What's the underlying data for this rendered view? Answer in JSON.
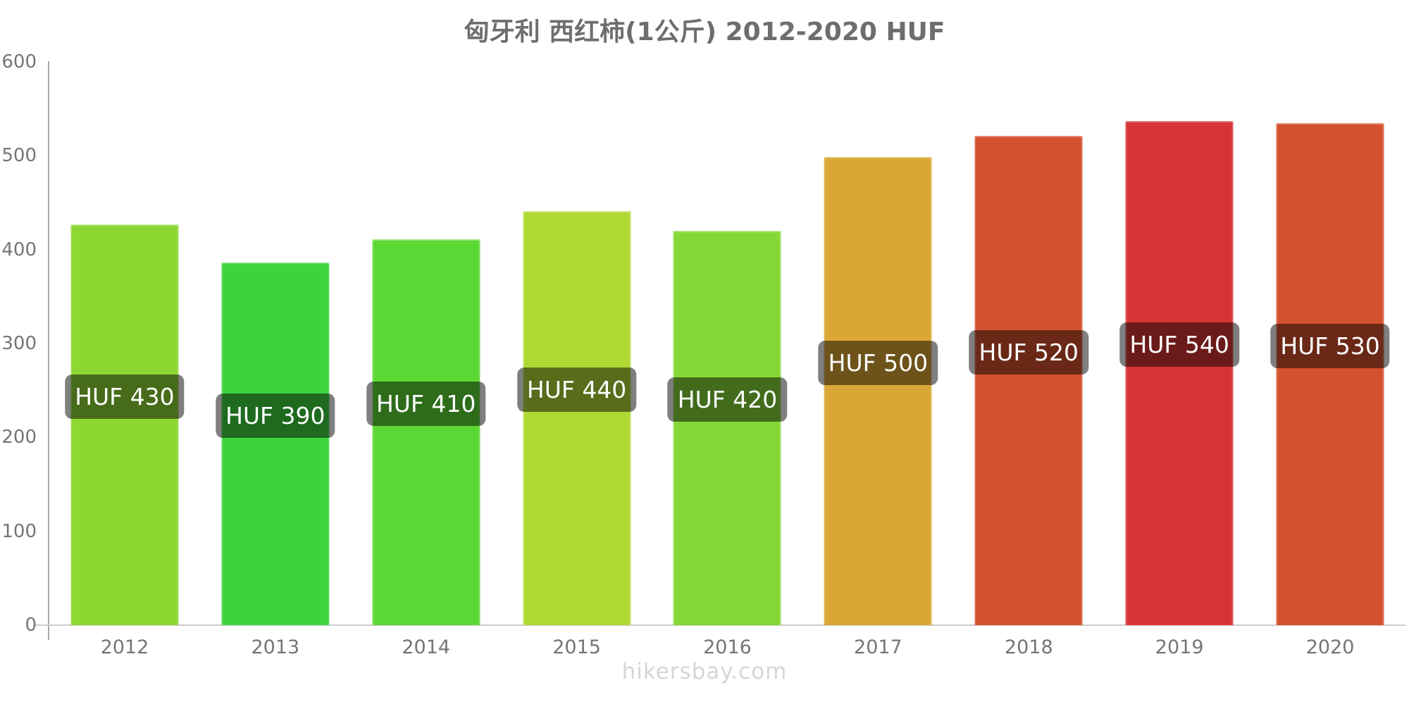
{
  "title": "匈牙利 西红柿(1公斤) 2012-2020 HUF",
  "watermark": "hikersbay.com",
  "colors": {
    "title_text": "#6e6e6e",
    "tick_text": "#757575",
    "watermark_text": "#d6d6d3",
    "y_axis_line": "#a8a8a8",
    "x_axis_line": "#cccccc",
    "value_label_text": "#ffffff",
    "value_label_bg": "rgba(0,0,0,0.5)"
  },
  "chart_data": {
    "type": "bar",
    "title": "匈牙利 西红柿(1公斤) 2012-2020 HUF",
    "categories": [
      "2012",
      "2013",
      "2014",
      "2015",
      "2016",
      "2017",
      "2018",
      "2019",
      "2020"
    ],
    "values": [
      430,
      390,
      410,
      440,
      420,
      500,
      520,
      540,
      530
    ],
    "bar_display_values": [
      427,
      386,
      411,
      441,
      420,
      499,
      521,
      537,
      535
    ],
    "value_labels": [
      "HUF 430",
      "HUF 390",
      "HUF 410",
      "HUF 440",
      "HUF 420",
      "HUF 500",
      "HUF 520",
      "HUF 540",
      "HUF 530"
    ],
    "bar_colors": [
      "#8DD733",
      "#3CD43C",
      "#5CD834",
      "#B0D936",
      "#85D837",
      "#DAA735",
      "#D4512F",
      "#D73535",
      "#D4512F"
    ],
    "xlabel": "",
    "ylabel": "",
    "ylim": [
      0,
      600
    ],
    "yticks": [
      600,
      500,
      400,
      300,
      200,
      100,
      0
    ],
    "grid": false,
    "legend": false,
    "currency": "HUF"
  }
}
